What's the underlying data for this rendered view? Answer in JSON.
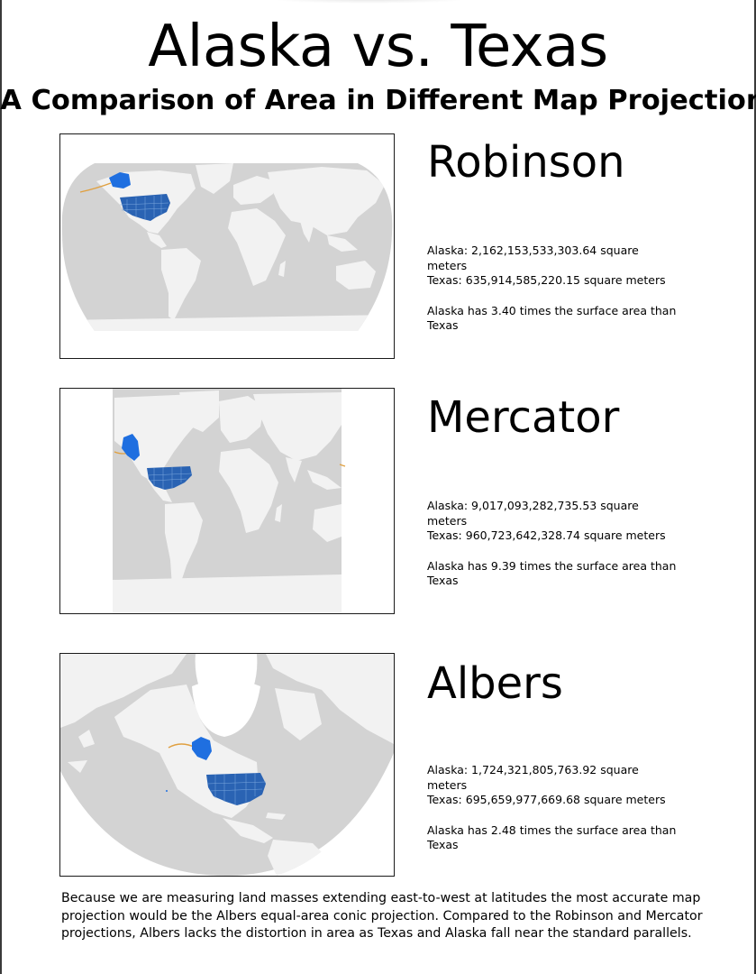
{
  "title": "Alaska vs. Texas",
  "subtitle": "A Comparison of Area in Different Map Projections",
  "colors": {
    "ocean": "#d3d3d3",
    "land": "#f2f2f2",
    "usa_highlight": "#2a63b3",
    "alaska_highlight": "#1f6fe0",
    "state_border": "#7aa7dd",
    "aleutians": "#e0a040"
  },
  "projections": [
    {
      "name": "Robinson",
      "alaska_area": "Alaska: 2,162,153,533,303.64 square meters",
      "texas_area": "Texas: 635,914,585,220.15 square meters",
      "ratio_text": "Alaska has 3.40 times the surface area than Texas",
      "ratio": 3.4
    },
    {
      "name": "Mercator",
      "alaska_area": "Alaska: 9,017,093,282,735.53 square meters",
      "texas_area": "Texas: 960,723,642,328.74 square meters",
      "ratio_text": "Alaska has 9.39 times the surface area than Texas",
      "ratio": 9.39
    },
    {
      "name": "Albers",
      "alaska_area": "Alaska: 1,724,321,805,763.92 square meters",
      "texas_area": "Texas: 695,659,977,669.68 square meters",
      "ratio_text": "Alaska has 2.48 times the surface area than Texas",
      "ratio": 2.48
    }
  ],
  "footer": "Because we are measuring land masses extending east-to-west at latitudes the most accurate map projection would be the Albers equal-area conic projection. Compared to the Robinson and Mercator projections, Albers lacks the distortion in area as Texas and Alaska fall near the standard parallels."
}
